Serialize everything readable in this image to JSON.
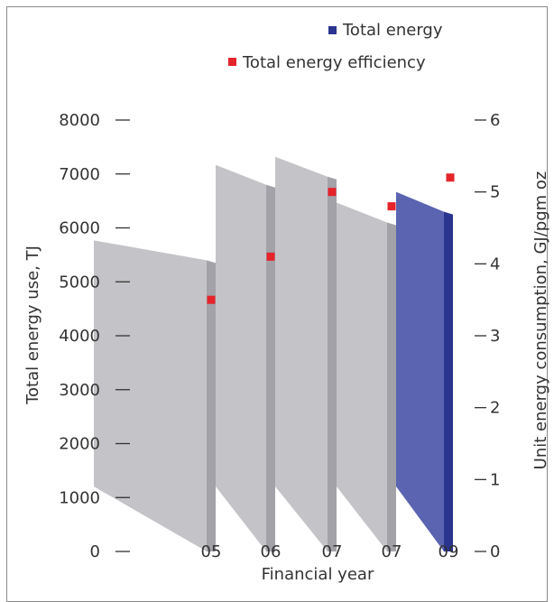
{
  "chart_data": {
    "type": "bar",
    "categories": [
      "05",
      "06",
      "07",
      "07",
      "09"
    ],
    "series": [
      {
        "name": "Total energy",
        "kind": "bar",
        "axis": "left",
        "values": [
          5400,
          6800,
          6950,
          6100,
          6300
        ],
        "color": "#5a64b0",
        "highlight_index": 4,
        "muted_color": "#c4c4c8"
      },
      {
        "name": "Total energy efficiency",
        "kind": "marker",
        "axis": "right",
        "values": [
          3.5,
          4.1,
          5.0,
          4.8,
          5.2
        ],
        "color": "#e5232a"
      }
    ],
    "xlabel": "Financial year",
    "ylabel": "Total energy use, TJ",
    "y2label": "Unit energy consumption,  GJ/pgm oz",
    "ylim": [
      0,
      8000
    ],
    "yticks": [
      "0",
      "1000",
      "2000",
      "3000",
      "4000",
      "5000",
      "6000",
      "7000",
      "8000"
    ],
    "y2lim": [
      0,
      6
    ],
    "y2ticks": [
      "0",
      "1",
      "2",
      "3",
      "4",
      "5",
      "6"
    ],
    "grid": false,
    "legend_position": "top-right"
  }
}
